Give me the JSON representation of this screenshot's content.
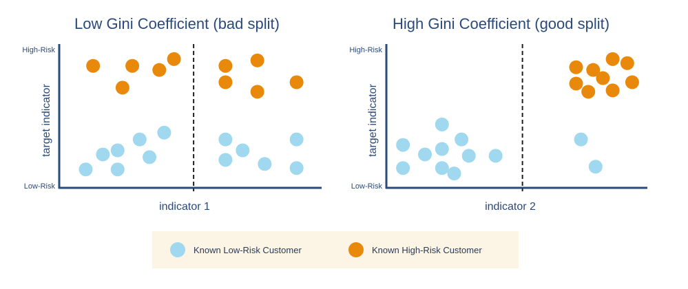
{
  "colors": {
    "low": "#9fd8ef",
    "high": "#e8890c",
    "axis": "#2a4a7a",
    "legend_bg": "#fcf5e6"
  },
  "panels": [
    {
      "title": "Low Gini Coefficient (bad split)",
      "xlabel": "indicator 1",
      "ylabel": "target indicator",
      "y_high": "High-Risk",
      "y_low": "Low-Risk",
      "split": 0.52,
      "high_points": [
        [
          0.11,
          0.87
        ],
        [
          0.27,
          0.87
        ],
        [
          0.38,
          0.84
        ],
        [
          0.44,
          0.92
        ],
        [
          0.23,
          0.71
        ],
        [
          0.65,
          0.87
        ],
        [
          0.78,
          0.91
        ],
        [
          0.65,
          0.75
        ],
        [
          0.78,
          0.68
        ],
        [
          0.94,
          0.75
        ]
      ],
      "low_points": [
        [
          0.08,
          0.11
        ],
        [
          0.15,
          0.22
        ],
        [
          0.21,
          0.25
        ],
        [
          0.21,
          0.11
        ],
        [
          0.3,
          0.33
        ],
        [
          0.34,
          0.2
        ],
        [
          0.4,
          0.38
        ],
        [
          0.65,
          0.33
        ],
        [
          0.72,
          0.25
        ],
        [
          0.65,
          0.18
        ],
        [
          0.81,
          0.15
        ],
        [
          0.94,
          0.33
        ],
        [
          0.94,
          0.12
        ]
      ]
    },
    {
      "title": "High Gini Coefficient (good split)",
      "xlabel": "indicator 2",
      "ylabel": "target indicator",
      "y_high": "High-Risk",
      "y_low": "Low-Risk",
      "split": 0.53,
      "high_points": [
        [
          0.75,
          0.86
        ],
        [
          0.82,
          0.84
        ],
        [
          0.9,
          0.92
        ],
        [
          0.96,
          0.89
        ],
        [
          0.75,
          0.74
        ],
        [
          0.8,
          0.68
        ],
        [
          0.86,
          0.78
        ],
        [
          0.9,
          0.69
        ],
        [
          0.98,
          0.75
        ]
      ],
      "low_points": [
        [
          0.04,
          0.29
        ],
        [
          0.13,
          0.22
        ],
        [
          0.2,
          0.44
        ],
        [
          0.2,
          0.26
        ],
        [
          0.28,
          0.33
        ],
        [
          0.31,
          0.21
        ],
        [
          0.42,
          0.21
        ],
        [
          0.04,
          0.12
        ],
        [
          0.2,
          0.12
        ],
        [
          0.25,
          0.08
        ],
        [
          0.77,
          0.33
        ],
        [
          0.83,
          0.13
        ]
      ]
    }
  ],
  "legend": {
    "low_label": "Known Low-Risk Customer",
    "high_label": "Known High-Risk Customer"
  }
}
